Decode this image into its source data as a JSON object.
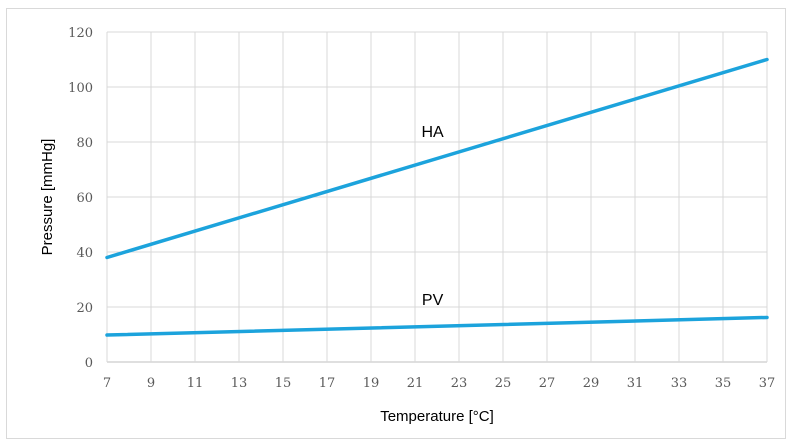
{
  "chart_data": {
    "type": "line",
    "title": "",
    "xlabel": "Temperature [°C]",
    "ylabel": "Pressure [mmHg]",
    "xlim": [
      7,
      37
    ],
    "ylim": [
      0,
      120
    ],
    "x_ticks": [
      7,
      9,
      11,
      13,
      15,
      17,
      19,
      21,
      23,
      25,
      27,
      29,
      31,
      33,
      35,
      37
    ],
    "y_ticks": [
      0,
      20,
      40,
      60,
      80,
      100,
      120
    ],
    "grid": true,
    "legend": "none",
    "line_color": "#1ca3dc",
    "series": [
      {
        "name": "HA",
        "label_at": {
          "x": 21.8,
          "y": 84
        },
        "points": [
          {
            "x": 7,
            "y": 38
          },
          {
            "x": 37,
            "y": 110
          }
        ]
      },
      {
        "name": "PV",
        "label_at": {
          "x": 21.8,
          "y": 23
        },
        "points": [
          {
            "x": 7,
            "y": 9.8
          },
          {
            "x": 37,
            "y": 16.2
          }
        ]
      }
    ]
  }
}
